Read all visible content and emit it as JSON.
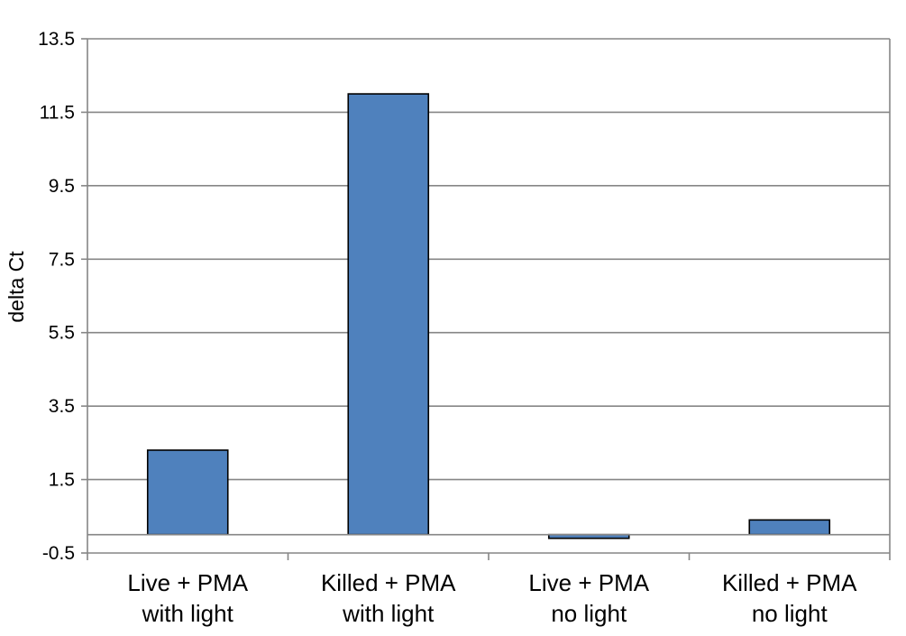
{
  "chart_data": {
    "type": "bar",
    "title": "",
    "xlabel": "",
    "ylabel": "delta Ct",
    "categories": [
      [
        "Live + PMA",
        "with light"
      ],
      [
        "Killed + PMA",
        "with light"
      ],
      [
        "Live + PMA",
        "no light"
      ],
      [
        "Killed + PMA",
        "no light"
      ]
    ],
    "values": [
      2.3,
      12.0,
      -0.1,
      0.4
    ],
    "ylim": [
      -0.5,
      13.5
    ],
    "yticks": [
      "13.5",
      "11.5",
      "9.5",
      "7.5",
      "5.5",
      "3.5",
      "1.5",
      "-0.5"
    ],
    "grid": true,
    "legend": "none",
    "colors": {
      "bar_fill": "#4f81bd",
      "bar_stroke": "#000000",
      "grid": "#868686",
      "axis": "#868686"
    }
  }
}
